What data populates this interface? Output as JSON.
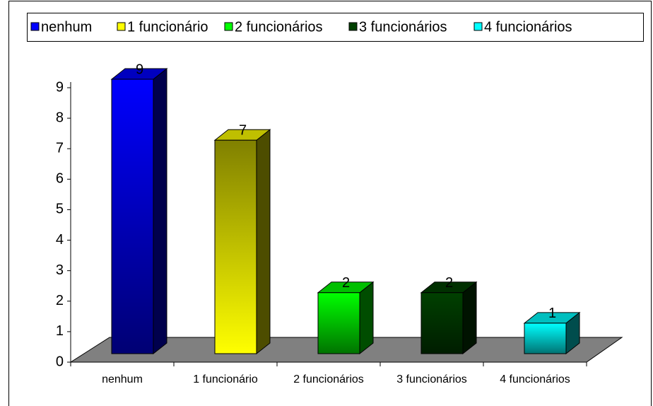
{
  "chart_data": {
    "type": "bar3d",
    "categories": [
      "nenhum",
      "1 funcionário",
      "2 funcionários",
      "3 funcionários",
      "4 funcionários"
    ],
    "values": [
      9,
      7,
      2,
      2,
      1
    ],
    "colors": [
      "#0000ff",
      "#ffff00",
      "#00ff00",
      "#004000",
      "#00ffff"
    ],
    "ylim": [
      0,
      9
    ],
    "yticks": [
      0,
      1,
      2,
      3,
      4,
      5,
      6,
      7,
      8,
      9
    ],
    "legend": "top",
    "value_labels_shown": true
  }
}
